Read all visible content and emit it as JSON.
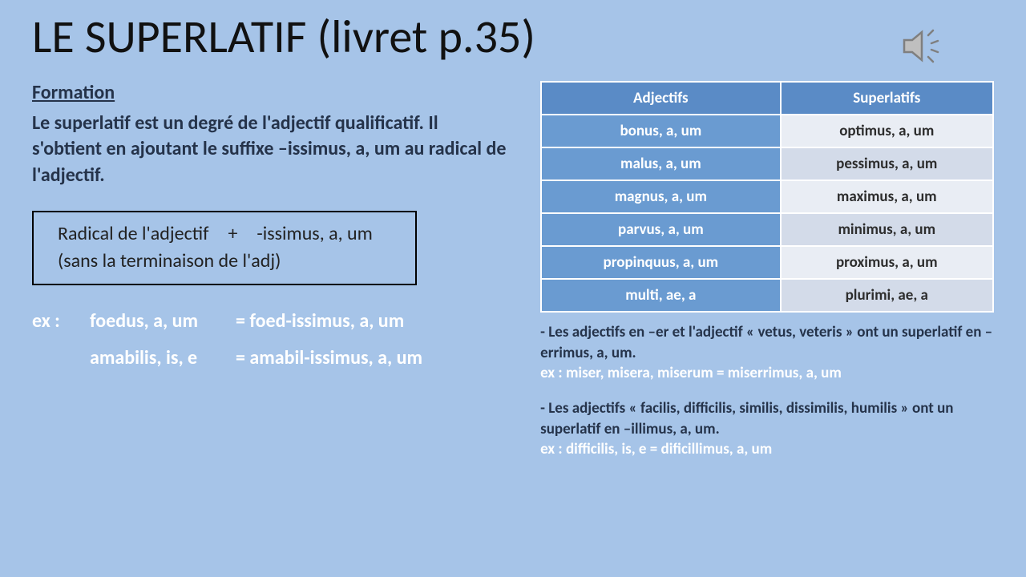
{
  "title": "LE SUPERLATIF (livret p.35)",
  "left": {
    "subheading": "Formation",
    "body": "Le superlatif est un degré de l'adjectif qualificatif. Il s'obtient en ajoutant le suffixe –issimus, a, um au radical de l'adjectif.",
    "formula_line1_left": "Radical de l'adjectif",
    "formula_line1_mid": "+",
    "formula_line1_right": "-issimus, a, um",
    "formula_line2": "(sans la terminaison de l'adj)",
    "ex_label": "ex :",
    "ex1_word": "foedus, a, um",
    "ex1_result": "= foed-issimus, a, um",
    "ex2_word": "amabilis, is, e",
    "ex2_result": "= amabil-issimus, a, um"
  },
  "table": {
    "head_left": "Adjectifs",
    "head_right": "Superlatifs",
    "rows": [
      {
        "adj": "bonus, a, um",
        "sup": "optimus, a, um"
      },
      {
        "adj": "malus, a, um",
        "sup": "pessimus, a, um"
      },
      {
        "adj": "magnus, a, um",
        "sup": "maximus, a, um"
      },
      {
        "adj": "parvus, a, um",
        "sup": "minimus, a, um"
      },
      {
        "adj": "propinquus, a, um",
        "sup": "proximus, a, um"
      },
      {
        "adj": "multi, ae, a",
        "sup": "plurimi, ae, a"
      }
    ],
    "row_alt_colors": [
      "#e9edf4",
      "#d3dbe9"
    ]
  },
  "notes": {
    "block1_rule": "- Les adjectifs en –er et l'adjectif « vetus, veteris » ont un superlatif en –errimus, a, um.",
    "block1_ex": "ex : miser, misera, miserum = miserrimus, a, um",
    "block2_rule": "- Les adjectifs «  facilis, difficilis, similis, dissimilis, humilis » ont un superlatif en –illimus, a, um.",
    "block2_ex": "ex : difficilis, is, e = dificillimus, a, um"
  },
  "colors": {
    "background": "#a6c4e8",
    "heading": "#25334a",
    "white_text": "#ffffff",
    "table_header": "#5a8bc6",
    "table_left": "#6a9bd1"
  },
  "icon": "speaker-icon"
}
